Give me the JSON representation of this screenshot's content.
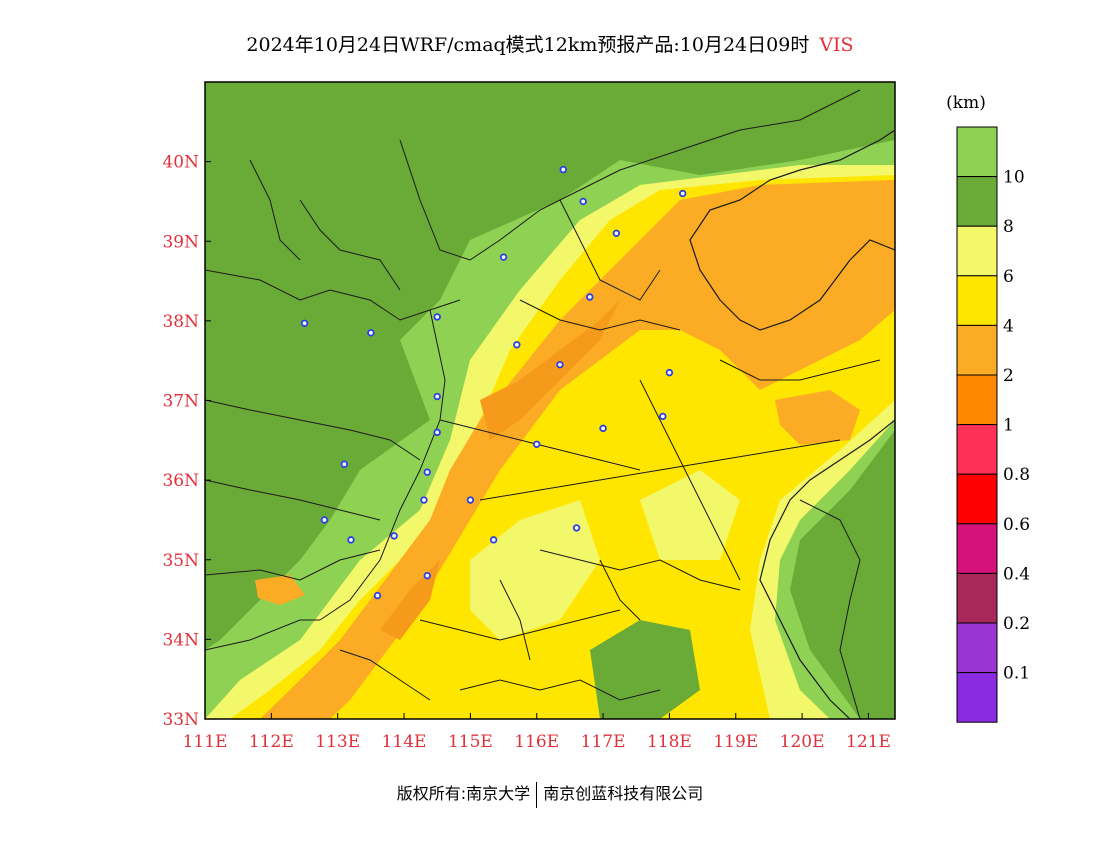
{
  "title": {
    "main": "2024年10月24日WRF/cmaq模式12km预报产品:10月24日09时",
    "variable": "VIS"
  },
  "colorbar": {
    "unit": "(km)",
    "bins": [
      {
        "color": "#8ed153",
        "label": "10"
      },
      {
        "color": "#6aab38",
        "label": "8"
      },
      {
        "color": "#f3f76a",
        "label": "6"
      },
      {
        "color": "#ffe600",
        "label": "4"
      },
      {
        "color": "#fbac24",
        "label": "2"
      },
      {
        "color": "#ff8800",
        "label": "1"
      },
      {
        "color": "#ff3055",
        "label": "0.8"
      },
      {
        "color": "#ff0000",
        "label": "0.6"
      },
      {
        "color": "#d4127a",
        "label": "0.4"
      },
      {
        "color": "#a8285a",
        "label": "0.2"
      },
      {
        "color": "#9a35d4",
        "label": "0.1"
      },
      {
        "color": "#8a2be2",
        "label": ""
      }
    ]
  },
  "axes": {
    "x_ticks": [
      "111E",
      "112E",
      "113E",
      "114E",
      "115E",
      "116E",
      "117E",
      "118E",
      "119E",
      "120E",
      "121E"
    ],
    "y_ticks": [
      "40N",
      "39N",
      "38N",
      "37N",
      "36N",
      "35N",
      "34N",
      "33N"
    ],
    "lon_range": [
      111,
      121.4
    ],
    "lat_range": [
      33,
      41
    ]
  },
  "stations": [
    {
      "lon": 116.4,
      "lat": 39.9
    },
    {
      "lon": 116.7,
      "lat": 39.5
    },
    {
      "lon": 118.2,
      "lat": 39.6
    },
    {
      "lon": 117.2,
      "lat": 39.1
    },
    {
      "lon": 115.5,
      "lat": 38.8
    },
    {
      "lon": 116.8,
      "lat": 38.3
    },
    {
      "lon": 112.5,
      "lat": 37.97
    },
    {
      "lon": 113.5,
      "lat": 37.85
    },
    {
      "lon": 114.5,
      "lat": 38.05
    },
    {
      "lon": 115.7,
      "lat": 37.7
    },
    {
      "lon": 116.35,
      "lat": 37.45
    },
    {
      "lon": 118.0,
      "lat": 37.35
    },
    {
      "lon": 114.5,
      "lat": 37.05
    },
    {
      "lon": 114.5,
      "lat": 36.6
    },
    {
      "lon": 117.9,
      "lat": 36.8
    },
    {
      "lon": 117.0,
      "lat": 36.65
    },
    {
      "lon": 116.0,
      "lat": 36.45
    },
    {
      "lon": 113.1,
      "lat": 36.2
    },
    {
      "lon": 114.35,
      "lat": 36.1
    },
    {
      "lon": 114.3,
      "lat": 35.75
    },
    {
      "lon": 115.0,
      "lat": 35.75
    },
    {
      "lon": 112.8,
      "lat": 35.5
    },
    {
      "lon": 113.85,
      "lat": 35.3
    },
    {
      "lon": 113.2,
      "lat": 35.25
    },
    {
      "lon": 116.6,
      "lat": 35.4
    },
    {
      "lon": 115.35,
      "lat": 35.25
    },
    {
      "lon": 114.35,
      "lat": 34.8
    },
    {
      "lon": 113.6,
      "lat": 34.55
    }
  ],
  "copyright": {
    "left": "版权所有:南京大学",
    "right": "南京创蓝科技有限公司"
  }
}
